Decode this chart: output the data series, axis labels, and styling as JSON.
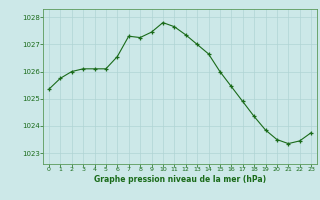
{
  "x": [
    0,
    1,
    2,
    3,
    4,
    5,
    6,
    7,
    8,
    9,
    10,
    11,
    12,
    13,
    14,
    15,
    16,
    17,
    18,
    19,
    20,
    21,
    22,
    23
  ],
  "y": [
    1025.35,
    1025.75,
    1026.0,
    1026.1,
    1026.1,
    1026.1,
    1026.55,
    1027.3,
    1027.25,
    1027.45,
    1027.8,
    1027.65,
    1027.35,
    1027.0,
    1026.65,
    1026.0,
    1025.45,
    1024.9,
    1024.35,
    1023.85,
    1023.5,
    1023.35,
    1023.45,
    1023.75
  ],
  "line_color": "#1a6b1a",
  "marker_color": "#1a6b1a",
  "bg_color": "#cce8e8",
  "grid_color": "#b0d4d4",
  "xlabel": "Graphe pression niveau de la mer (hPa)",
  "xlabel_color": "#1a6b1a",
  "tick_color": "#1a6b1a",
  "spine_color": "#5a9a5a",
  "ylim": [
    1022.6,
    1028.3
  ],
  "yticks": [
    1023,
    1024,
    1025,
    1026,
    1027,
    1028
  ],
  "xlim": [
    -0.5,
    23.5
  ],
  "xticks": [
    0,
    1,
    2,
    3,
    4,
    5,
    6,
    7,
    8,
    9,
    10,
    11,
    12,
    13,
    14,
    15,
    16,
    17,
    18,
    19,
    20,
    21,
    22,
    23
  ]
}
